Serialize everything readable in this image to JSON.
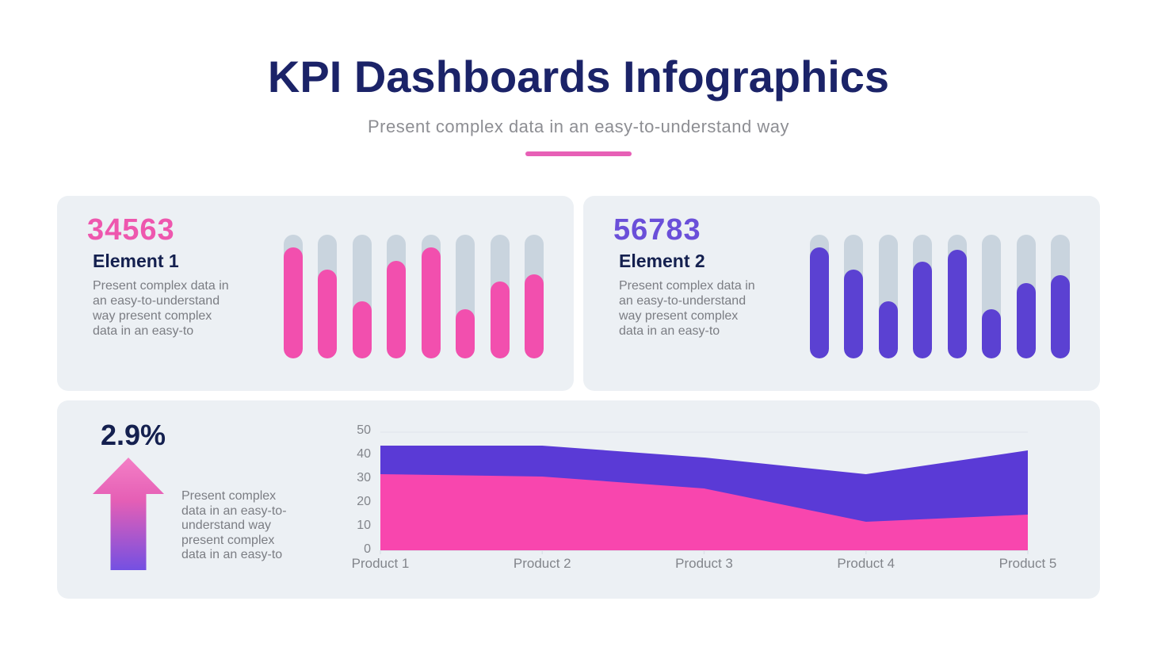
{
  "header": {
    "title": "KPI Dashboards Infographics",
    "subtitle": "Present complex data in an easy-to-understand way"
  },
  "cards": {
    "element1": {
      "value": "34563",
      "title": "Element 1",
      "description": "Present complex data in an easy-to-understand way present complex data in an easy-to"
    },
    "element2": {
      "value": "56783",
      "title": "Element 2",
      "description": "Present complex data in an easy-to-understand way present complex data in an easy-to"
    },
    "trend": {
      "value": "2.9%",
      "description": "Present complex data in an easy-to-understand way present complex data in an easy-to"
    }
  },
  "colors": {
    "page_bg": "#ffffff",
    "card_bg": "#ecf0f4",
    "title_navy": "#1b2368",
    "heading_navy": "#14204f",
    "subtitle_gray": "#8d8e93",
    "body_gray": "#7b7d83",
    "kpi_pink": "#ee57ae",
    "kpi_purple": "#6a4fd9",
    "underline_pink": "#e760b6",
    "pill_track": "#c9d4de",
    "pill_pink": "#f24fae",
    "pill_purple": "#5b41d2",
    "area_pink": "#f846ae",
    "area_purple": "#5a3ad6",
    "axis_gray": "#82858b",
    "gridline": "#e3e7ee",
    "baseline": "#dde2e9"
  },
  "icons": {
    "up_arrow_gradient": [
      "#f47fc6",
      "#e55fb5",
      "#7450e2"
    ]
  },
  "chart_data": [
    {
      "type": "bar",
      "variant": "vertical-progress-pills",
      "panel": "Element 1",
      "unit": "percent_fill",
      "values": [
        90,
        72,
        46,
        79,
        90,
        40,
        62,
        68
      ],
      "fill_color": "#f24fae",
      "track_color": "#c9d4de",
      "ylim": [
        0,
        100
      ],
      "grid": false,
      "legend": "none"
    },
    {
      "type": "bar",
      "variant": "vertical-progress-pills",
      "panel": "Element 2",
      "unit": "percent_fill",
      "values": [
        90,
        72,
        46,
        78,
        88,
        40,
        61,
        67
      ],
      "fill_color": "#5b41d2",
      "track_color": "#c9d4de",
      "ylim": [
        0,
        100
      ],
      "grid": false,
      "legend": "none"
    },
    {
      "type": "area",
      "variant": "stacked",
      "title": "",
      "xlabel": "",
      "ylabel": "",
      "categories": [
        "Product 1",
        "Product 2",
        "Product 3",
        "Product 4",
        "Product 5"
      ],
      "series": [
        {
          "name": "bottom-pink-series",
          "values": [
            32,
            31,
            26,
            12,
            15
          ],
          "color": "#f846ae"
        },
        {
          "name": "top-purple-series",
          "values": [
            12,
            13,
            13,
            20,
            27
          ],
          "color": "#5a3ad6"
        }
      ],
      "stacked_totals": [
        44,
        44,
        39,
        32,
        42
      ],
      "ylim": [
        0,
        50
      ],
      "yticks": [
        0,
        10,
        20,
        30,
        40,
        50
      ],
      "grid": "single-top-gridline-at-50",
      "legend": "none"
    }
  ]
}
